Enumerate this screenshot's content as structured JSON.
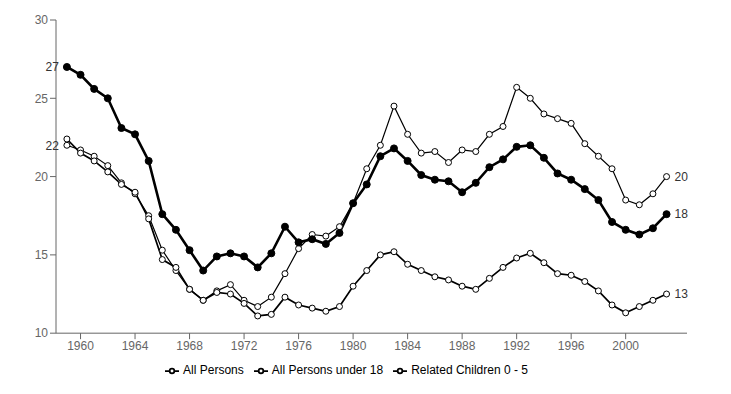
{
  "chart_data": {
    "type": "line",
    "x": [
      1959,
      1960,
      1961,
      1962,
      1963,
      1964,
      1965,
      1966,
      1967,
      1968,
      1969,
      1970,
      1971,
      1972,
      1973,
      1974,
      1975,
      1976,
      1977,
      1978,
      1979,
      1980,
      1981,
      1982,
      1983,
      1984,
      1985,
      1986,
      1987,
      1988,
      1989,
      1990,
      1991,
      1992,
      1993,
      1994,
      1995,
      1996,
      1997,
      1998,
      1999,
      2000,
      2001,
      2002,
      2003
    ],
    "series": [
      {
        "name": "Related Children 0 - 5",
        "color": "#000000",
        "marker": "open_circle",
        "values": [
          22.0,
          21.7,
          21.3,
          20.7,
          19.6,
          18.9,
          17.5,
          15.3,
          14.0,
          12.8,
          12.1,
          12.7,
          13.1,
          12.1,
          11.7,
          12.3,
          13.8,
          15.4,
          16.3,
          16.2,
          16.8,
          18.3,
          20.5,
          22.0,
          24.5,
          22.7,
          21.5,
          21.6,
          20.9,
          21.7,
          21.6,
          22.7,
          23.2,
          25.7,
          25.0,
          24.0,
          23.7,
          23.4,
          22.1,
          21.3,
          20.5,
          18.5,
          18.2,
          18.9,
          20.0
        ]
      },
      {
        "name": "All Persons under 18",
        "color": "#000000",
        "marker": "filled_circle",
        "values": [
          27.0,
          26.5,
          25.6,
          25.0,
          23.1,
          22.7,
          21.0,
          17.6,
          16.6,
          15.3,
          14.0,
          14.9,
          15.1,
          14.9,
          14.2,
          15.1,
          16.8,
          15.8,
          16.0,
          15.7,
          16.4,
          18.3,
          19.5,
          21.3,
          21.8,
          21.0,
          20.1,
          19.8,
          19.7,
          19.0,
          19.6,
          20.6,
          21.1,
          21.9,
          22.0,
          21.2,
          20.2,
          19.8,
          19.2,
          18.5,
          17.1,
          16.6,
          16.3,
          16.7,
          17.6
        ]
      },
      {
        "name": "All Persons",
        "color": "#000000",
        "marker": "open_circle",
        "values": [
          22.4,
          21.5,
          21.0,
          20.3,
          19.5,
          19.0,
          17.3,
          14.7,
          14.2,
          12.8,
          12.1,
          12.6,
          12.5,
          11.9,
          11.1,
          11.2,
          12.3,
          11.8,
          11.6,
          11.4,
          11.7,
          13.0,
          14.0,
          15.0,
          15.2,
          14.4,
          14.0,
          13.6,
          13.4,
          13.0,
          12.8,
          13.5,
          14.2,
          14.8,
          15.1,
          14.5,
          13.8,
          13.7,
          13.3,
          12.7,
          11.8,
          11.3,
          11.7,
          12.1,
          12.5
        ]
      }
    ],
    "xlim": [
      1958.2,
      2004.5
    ],
    "xticks": [
      1960,
      1964,
      1968,
      1972,
      1976,
      1980,
      1984,
      1988,
      1992,
      1996,
      2000
    ],
    "ylim": [
      10,
      30
    ],
    "yticks": [
      10,
      15,
      20,
      25,
      30
    ],
    "grid": false,
    "legend": "bottom",
    "annotations": [
      {
        "text": "27",
        "x": 1959,
        "y": 27.0
      },
      {
        "text": "22",
        "x": 1959,
        "y": 22.0
      },
      {
        "text": "20",
        "x": 2003,
        "y": 20.0
      },
      {
        "text": "18",
        "x": 2003,
        "y": 17.6
      },
      {
        "text": "13",
        "x": 2003,
        "y": 12.5
      }
    ]
  }
}
